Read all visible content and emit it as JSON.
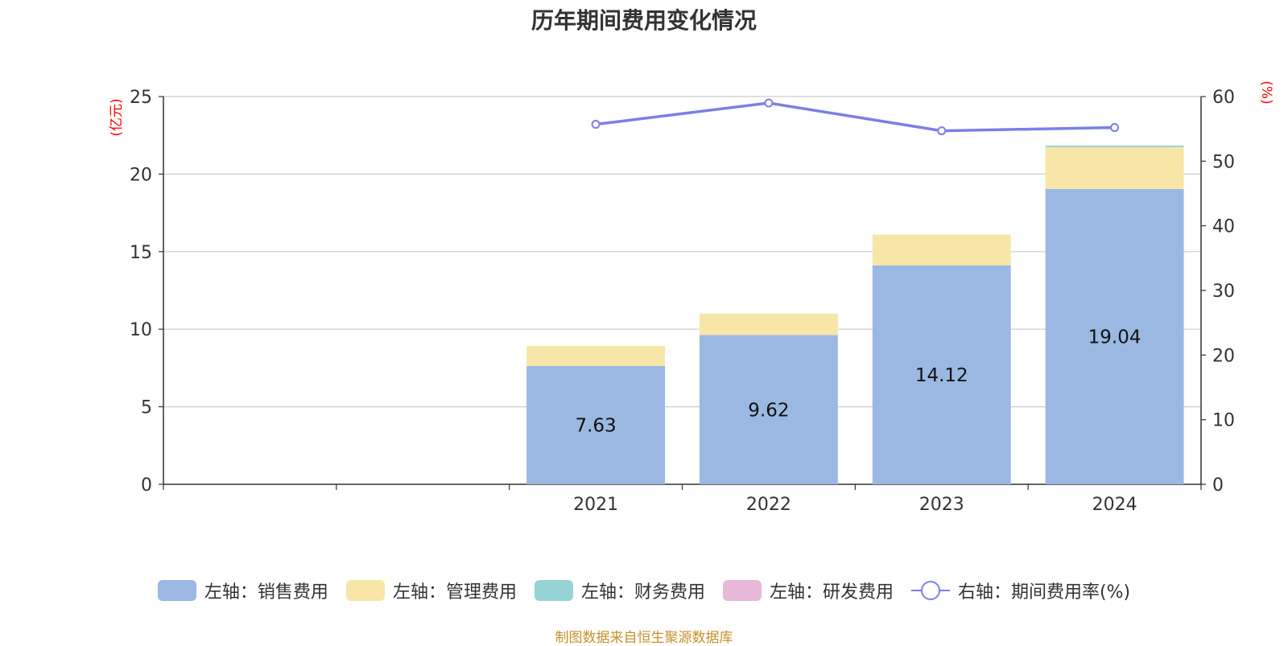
{
  "chart_data": {
    "type": "bar",
    "title": "历年期间费用变化情况",
    "left_axis_label": "(亿元)",
    "right_axis_label": "(%)",
    "left_ylim": [
      0,
      25
    ],
    "left_ticks": [
      0,
      5,
      10,
      15,
      20,
      25
    ],
    "right_ylim": [
      0,
      60
    ],
    "right_ticks": [
      0,
      10,
      20,
      30,
      40,
      50,
      60
    ],
    "categories": [
      "",
      "",
      "2021",
      "2022",
      "2023",
      "2024"
    ],
    "stacked": true,
    "series": [
      {
        "name": "左轴：销售费用",
        "axis": "left",
        "type": "bar",
        "color": "#9bb8e2",
        "values": [
          null,
          null,
          7.63,
          9.62,
          14.12,
          19.04
        ],
        "show_labels": true
      },
      {
        "name": "左轴：管理费用",
        "axis": "left",
        "type": "bar",
        "color": "#f7e6a8",
        "values": [
          null,
          null,
          1.3,
          1.38,
          1.98,
          2.7
        ]
      },
      {
        "name": "左轴：财务费用",
        "axis": "left",
        "type": "bar",
        "color": "#96d3d4",
        "values": [
          null,
          null,
          0.0,
          0.0,
          0.0,
          0.1
        ]
      },
      {
        "name": "左轴：研发费用",
        "axis": "left",
        "type": "bar",
        "color": "#e8b8d8",
        "values": [
          null,
          null,
          0.0,
          0.0,
          0.0,
          0.0
        ]
      },
      {
        "name": "右轴：期间费用率(%)",
        "axis": "right",
        "type": "line",
        "color": "#7b7fe8",
        "values": [
          null,
          null,
          55.7,
          59.0,
          54.7,
          55.2
        ]
      }
    ]
  },
  "source": "制图数据来自恒生聚源数据库",
  "colors": {
    "axis_label": "#ff0000",
    "source": "#c8902c",
    "grid": "#cccccc",
    "text": "#333333"
  }
}
